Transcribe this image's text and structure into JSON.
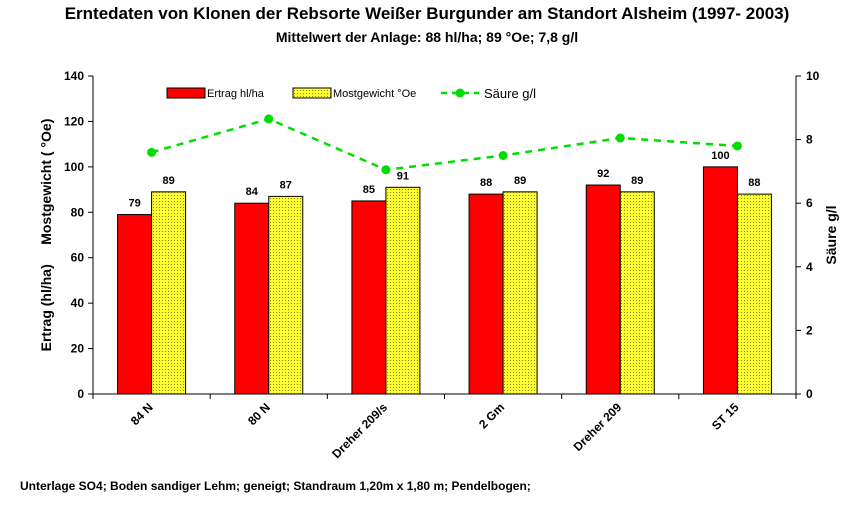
{
  "chart_data": {
    "type": "bar",
    "title": "Erntedaten von Klonen der Rebsorte Weißer Burgunder am Standort Alsheim (1997- 2003)",
    "subtitle": "Mittelwert der Anlage: 88 hl/ha; 89 °Oe; 7,8 g/l",
    "categories": [
      "84 N",
      "80 N",
      "Dreher 209/s",
      "2 Gm",
      "Dreher 209",
      "ST 15"
    ],
    "series": [
      {
        "name": "Ertrag hl/ha",
        "axis": "left",
        "kind": "bar",
        "color": "#ff0000",
        "values": [
          79,
          84,
          85,
          88,
          92,
          100
        ]
      },
      {
        "name": "Mostgewicht °Oe",
        "axis": "left",
        "kind": "bar",
        "color": "#ffff33",
        "pattern": "dotted",
        "values": [
          89,
          87,
          91,
          89,
          89,
          88
        ]
      },
      {
        "name": "Säure g/l",
        "axis": "right",
        "kind": "line",
        "color": "#00dd00",
        "style": "dashed",
        "values": [
          7.6,
          8.65,
          7.05,
          7.5,
          8.05,
          7.8
        ]
      }
    ],
    "ylabel_left": "Ertrag (hl/ha)     Mostgewicht ( °Oe)",
    "ylabel_right": "Säure g/l",
    "ylim_left": [
      0,
      140
    ],
    "yticks_left": [
      0,
      20,
      40,
      60,
      80,
      100,
      120,
      140
    ],
    "ylim_right": [
      0,
      10
    ],
    "yticks_right": [
      0,
      2,
      4,
      6,
      8,
      10
    ],
    "legend_position": "top-center",
    "grid": false
  },
  "footnote": "Unterlage SO4; Boden sandiger Lehm; geneigt; Standraum 1,20m x 1,80 m; Pendelbogen;"
}
